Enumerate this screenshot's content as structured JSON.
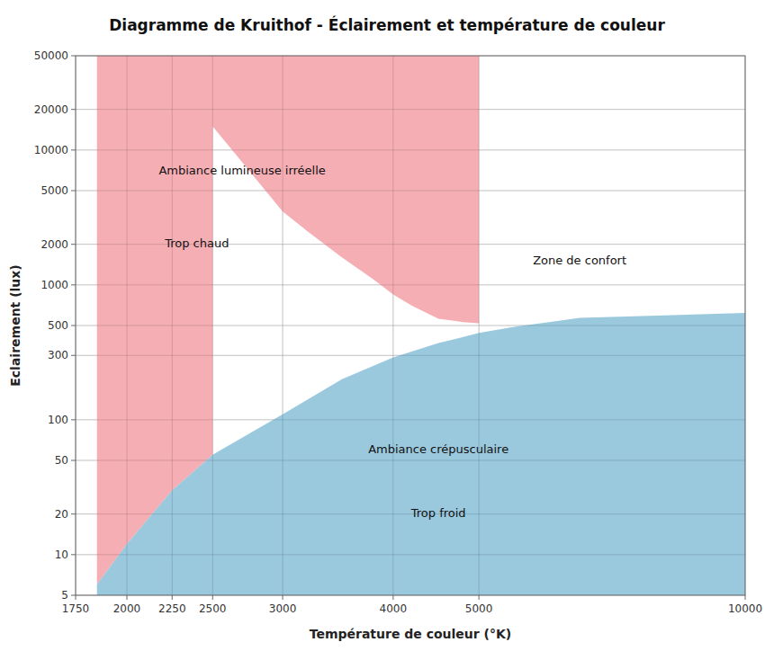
{
  "chart_data": {
    "type": "area",
    "title": "Diagramme de Kruithof - Éclairement et température de couleur",
    "xlabel": "Température de couleur (°K)",
    "ylabel": "Eclairement (lux)",
    "log": true,
    "grid": true,
    "xlim": [
      1750,
      10000
    ],
    "ylim": [
      5,
      50000
    ],
    "xticks": [
      1750,
      2000,
      2250,
      2500,
      3000,
      4000,
      5000,
      10000
    ],
    "yticks": [
      5,
      10,
      20,
      50,
      100,
      300,
      500,
      1000,
      2000,
      5000,
      10000,
      20000,
      50000
    ],
    "series": [
      {
        "color": "#f5a0a8",
        "x": [
          1850,
          1850,
          2000,
          2250,
          2500,
          2500,
          2750,
          3000,
          3200,
          3500,
          3800,
          4000,
          4200,
          4500,
          4800,
          5000,
          5000,
          1850,
          1850
        ],
        "values": [
          5,
          6,
          12,
          30,
          55,
          15000,
          7000,
          3500,
          2500,
          1600,
          1100,
          850,
          700,
          560,
          530,
          520,
          50000,
          50000,
          5
        ]
      },
      {
        "color": "#88c0d8",
        "x": [
          1850,
          2000,
          2250,
          2500,
          3000,
          3500,
          4000,
          4500,
          5000,
          5500,
          6000,
          6500,
          10000,
          10000,
          1850
        ],
        "values": [
          6,
          12,
          30,
          55,
          110,
          200,
          290,
          370,
          440,
          490,
          530,
          570,
          620,
          5,
          5
        ]
      }
    ],
    "annotations": [
      {
        "text": "Ambiance lumineuse irréelle",
        "x": 2700,
        "y": 7000
      },
      {
        "text": "Trop chaud",
        "x": 2400,
        "y": 2000
      },
      {
        "text": "Zone de confort",
        "x": 6500,
        "y": 1500
      },
      {
        "text": "Ambiance crépusculaire",
        "x": 4500,
        "y": 60
      },
      {
        "text": "Trop froid",
        "x": 4500,
        "y": 20
      }
    ]
  }
}
